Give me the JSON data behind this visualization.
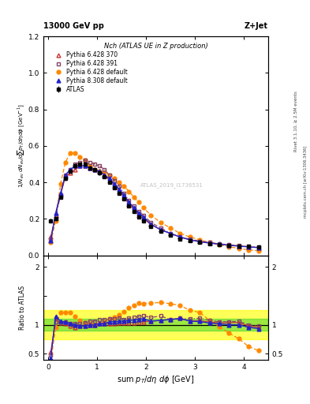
{
  "title_left": "13000 GeV pp",
  "title_right": "Z+Jet",
  "plot_title": "Nch (ATLAS UE in Z production)",
  "xlabel": "sum p_{T}/d\\eta d\\phi [GeV]",
  "ylabel_main": "1/N_{ev} dN_{ev}/dsum p_{T}/d\\eta d\\phi  [GeV$^{-1}$]",
  "ylabel_ratio": "Ratio to ATLAS",
  "right_label_top": "Rivet 3.1.10, ≥ 2.5M events",
  "right_label_bot": "mcplots.cern.ch [arXiv:1306.3436]",
  "watermark": "ATLAS_2019_I1736531",
  "x_atlas": [
    0.05,
    0.15,
    0.25,
    0.35,
    0.45,
    0.55,
    0.65,
    0.75,
    0.85,
    0.95,
    1.05,
    1.15,
    1.25,
    1.35,
    1.45,
    1.55,
    1.65,
    1.75,
    1.85,
    1.95,
    2.1,
    2.3,
    2.5,
    2.7,
    2.9,
    3.1,
    3.3,
    3.5,
    3.7,
    3.9,
    4.1,
    4.3
  ],
  "y_atlas": [
    0.19,
    0.2,
    0.32,
    0.42,
    0.46,
    0.49,
    0.5,
    0.5,
    0.48,
    0.47,
    0.45,
    0.43,
    0.4,
    0.37,
    0.34,
    0.31,
    0.27,
    0.24,
    0.21,
    0.19,
    0.16,
    0.13,
    0.11,
    0.09,
    0.08,
    0.07,
    0.065,
    0.06,
    0.055,
    0.05,
    0.048,
    0.045
  ],
  "y_atlas_err": [
    0.01,
    0.01,
    0.01,
    0.01,
    0.01,
    0.01,
    0.01,
    0.01,
    0.01,
    0.01,
    0.01,
    0.01,
    0.01,
    0.01,
    0.01,
    0.01,
    0.01,
    0.01,
    0.01,
    0.01,
    0.008,
    0.007,
    0.006,
    0.005,
    0.005,
    0.004,
    0.004,
    0.004,
    0.003,
    0.003,
    0.003,
    0.003
  ],
  "x_py6_370": [
    0.05,
    0.15,
    0.25,
    0.35,
    0.45,
    0.55,
    0.65,
    0.75,
    0.85,
    0.95,
    1.05,
    1.15,
    1.25,
    1.35,
    1.45,
    1.55,
    1.65,
    1.75,
    1.85,
    1.95,
    2.1,
    2.3,
    2.5,
    2.7,
    2.9,
    3.1,
    3.3,
    3.5,
    3.7,
    3.9,
    4.1,
    4.3
  ],
  "y_py6_370": [
    0.1,
    0.22,
    0.33,
    0.43,
    0.45,
    0.47,
    0.49,
    0.49,
    0.48,
    0.47,
    0.46,
    0.44,
    0.41,
    0.38,
    0.35,
    0.32,
    0.28,
    0.25,
    0.22,
    0.2,
    0.17,
    0.14,
    0.12,
    0.1,
    0.085,
    0.075,
    0.068,
    0.062,
    0.057,
    0.052,
    0.047,
    0.043
  ],
  "x_py6_391": [
    0.05,
    0.15,
    0.25,
    0.35,
    0.45,
    0.55,
    0.65,
    0.75,
    0.85,
    0.95,
    1.05,
    1.15,
    1.25,
    1.35,
    1.45,
    1.55,
    1.65,
    1.75,
    1.85,
    1.95,
    2.1,
    2.3,
    2.5,
    2.7,
    2.9,
    3.1,
    3.3,
    3.5,
    3.7,
    3.9,
    4.1,
    4.3
  ],
  "y_py6_391": [
    0.09,
    0.21,
    0.33,
    0.44,
    0.47,
    0.5,
    0.51,
    0.52,
    0.51,
    0.5,
    0.49,
    0.47,
    0.44,
    0.41,
    0.38,
    0.34,
    0.3,
    0.27,
    0.24,
    0.22,
    0.18,
    0.15,
    0.12,
    0.1,
    0.088,
    0.078,
    0.07,
    0.063,
    0.058,
    0.053,
    0.048,
    0.044
  ],
  "x_py6_def": [
    0.05,
    0.15,
    0.25,
    0.35,
    0.45,
    0.55,
    0.65,
    0.75,
    0.85,
    0.95,
    1.05,
    1.15,
    1.25,
    1.35,
    1.45,
    1.55,
    1.65,
    1.75,
    1.85,
    1.95,
    2.1,
    2.3,
    2.5,
    2.7,
    2.9,
    3.1,
    3.3,
    3.5,
    3.7,
    3.9,
    4.1,
    4.3
  ],
  "y_py6_def": [
    0.07,
    0.19,
    0.39,
    0.51,
    0.56,
    0.56,
    0.54,
    0.52,
    0.49,
    0.47,
    0.46,
    0.45,
    0.44,
    0.42,
    0.4,
    0.38,
    0.35,
    0.32,
    0.29,
    0.26,
    0.22,
    0.18,
    0.15,
    0.12,
    0.1,
    0.085,
    0.07,
    0.058,
    0.047,
    0.038,
    0.03,
    0.025
  ],
  "x_py8_def": [
    0.05,
    0.15,
    0.25,
    0.35,
    0.45,
    0.55,
    0.65,
    0.75,
    0.85,
    0.95,
    1.05,
    1.15,
    1.25,
    1.35,
    1.45,
    1.55,
    1.65,
    1.75,
    1.85,
    1.95,
    2.1,
    2.3,
    2.5,
    2.7,
    2.9,
    3.1,
    3.3,
    3.5,
    3.7,
    3.9,
    4.1,
    4.3
  ],
  "y_py8_def": [
    0.08,
    0.23,
    0.34,
    0.44,
    0.47,
    0.49,
    0.49,
    0.49,
    0.48,
    0.47,
    0.46,
    0.44,
    0.42,
    0.39,
    0.36,
    0.33,
    0.29,
    0.26,
    0.23,
    0.21,
    0.17,
    0.14,
    0.12,
    0.1,
    0.085,
    0.074,
    0.067,
    0.061,
    0.055,
    0.05,
    0.046,
    0.042
  ],
  "color_atlas": "#000000",
  "color_py6_370": "#cc3333",
  "color_py6_391": "#884466",
  "color_py6_def": "#ff8800",
  "color_py8_def": "#2222cc",
  "band_yellow": [
    0.75,
    1.25
  ],
  "band_green": [
    0.9,
    1.1
  ],
  "ylim_main": [
    0.0,
    1.2
  ],
  "ylim_ratio": [
    0.4,
    2.2
  ],
  "xlim": [
    -0.1,
    4.5
  ]
}
